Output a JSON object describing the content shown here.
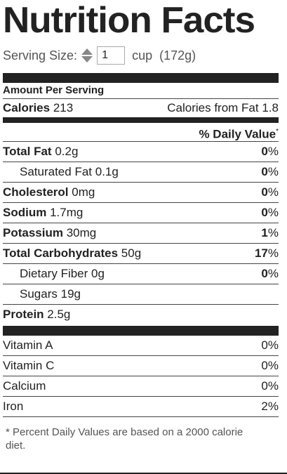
{
  "label": {
    "title": "Nutrition Facts",
    "serving": {
      "label": "Serving Size:",
      "quantity": "1",
      "unit": "cup",
      "grams": "(172g)"
    },
    "amount_per_serving": "Amount Per Serving",
    "calories": {
      "label": "Calories",
      "value": "213"
    },
    "calories_from_fat": {
      "label": "Calories from Fat",
      "value": "1.8"
    },
    "daily_value_header": "% Daily Value",
    "daily_value_mark": "*",
    "nutrients": [
      {
        "name": "Total Fat",
        "amount": "0.2g",
        "pct": "0"
      },
      {
        "name": "Saturated Fat",
        "amount": "0.1g",
        "pct": "0"
      },
      {
        "name": "Cholesterol",
        "amount": "0mg",
        "pct": "0"
      },
      {
        "name": "Sodium",
        "amount": "1.7mg",
        "pct": "0"
      },
      {
        "name": "Potassium",
        "amount": "30mg",
        "pct": "1"
      },
      {
        "name": "Total Carbohydrates",
        "amount": "50g",
        "pct": "17"
      },
      {
        "name": "Dietary Fiber",
        "amount": "0g",
        "pct": "0"
      },
      {
        "name": "Sugars",
        "amount": "19g"
      },
      {
        "name": "Protein",
        "amount": "2.5g"
      }
    ],
    "percent_sign": "%",
    "vitamins": [
      {
        "name": "Vitamin A",
        "pct": "0%"
      },
      {
        "name": "Vitamin C",
        "pct": "0%"
      },
      {
        "name": "Calcium",
        "pct": "0%"
      },
      {
        "name": "Iron",
        "pct": "2%"
      }
    ],
    "footnote": "* Percent Daily Values are based on a 2000 calorie diet."
  }
}
